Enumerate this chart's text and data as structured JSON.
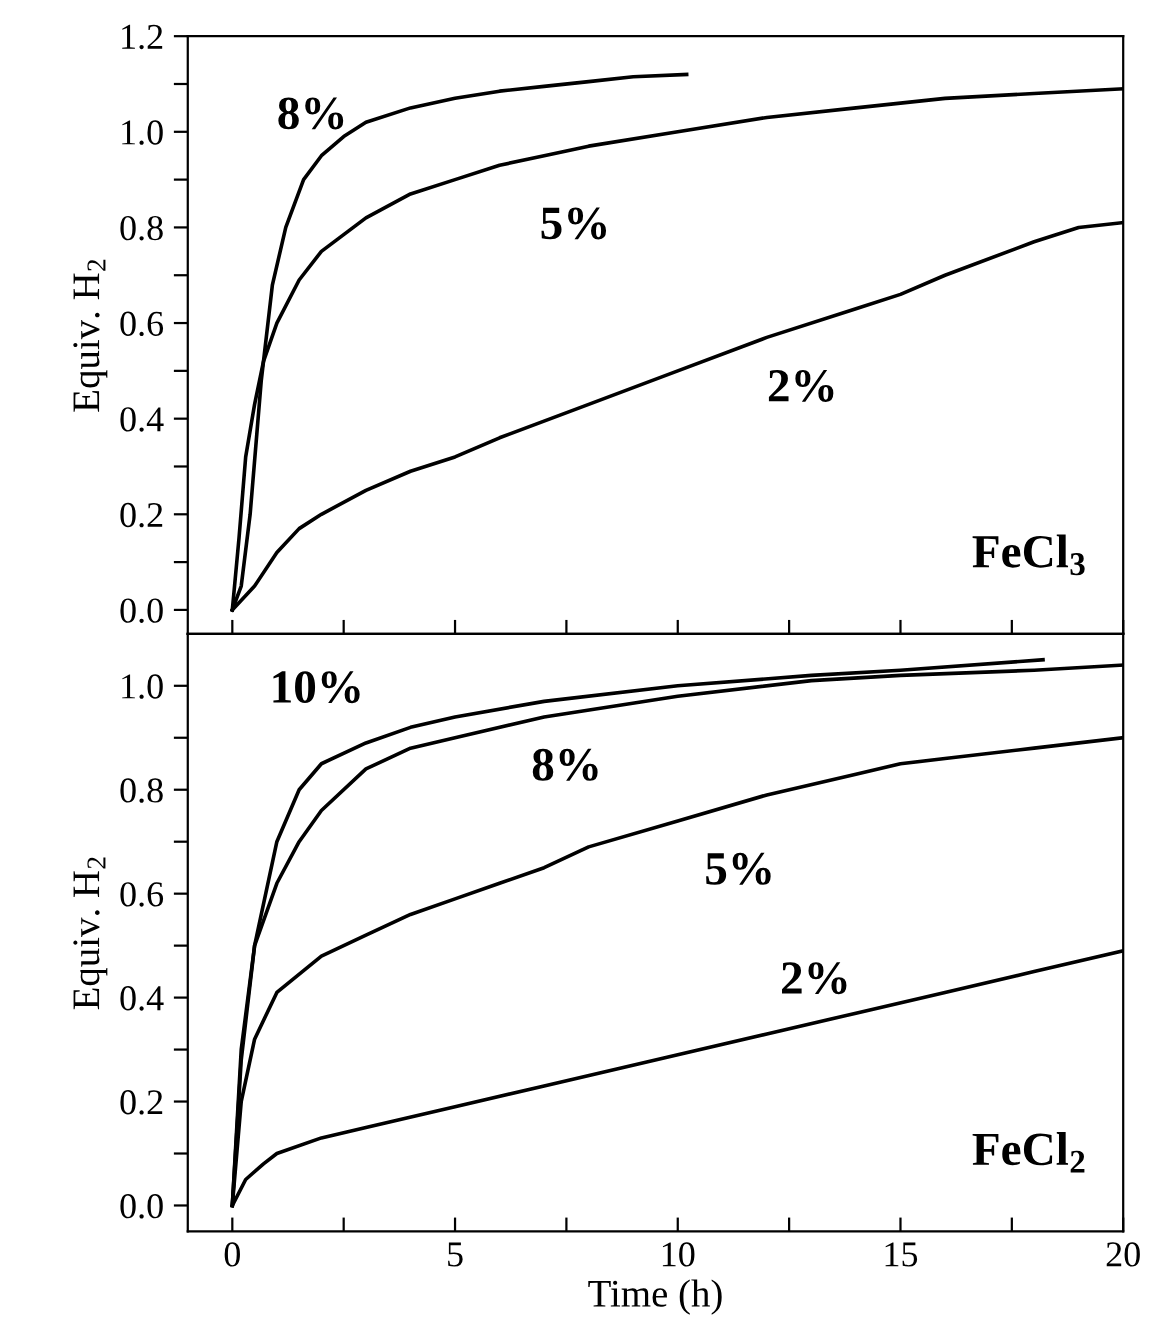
{
  "chart_data": [
    {
      "type": "line",
      "ylabel": "Equiv. H$_{2}$",
      "xlim": [
        -1,
        20
      ],
      "ylim": [
        -0.05,
        1.2
      ],
      "tick_labels": "y",
      "grid": false,
      "legend": false,
      "marker": "none",
      "line_style": "solid",
      "xticks": [
        {
          "value": 0,
          "label": null
        },
        {
          "value": 2.5,
          "label": null
        },
        {
          "value": 5,
          "label": null
        },
        {
          "value": 7.5,
          "label": null
        },
        {
          "value": 10,
          "label": null
        },
        {
          "value": 12.5,
          "label": null
        },
        {
          "value": 15,
          "label": null
        },
        {
          "value": 17.5,
          "label": null
        },
        {
          "value": 20,
          "label": null
        }
      ],
      "yticks": [
        {
          "value": 0,
          "label": "0.0"
        },
        {
          "value": 0.1,
          "label": null
        },
        {
          "value": 0.2,
          "label": "0.2"
        },
        {
          "value": 0.3,
          "label": null
        },
        {
          "value": 0.4,
          "label": "0.4"
        },
        {
          "value": 0.5,
          "label": null
        },
        {
          "value": 0.6,
          "label": "0.6"
        },
        {
          "value": 0.7,
          "label": null
        },
        {
          "value": 0.8,
          "label": "0.8"
        },
        {
          "value": 0.9,
          "label": null
        },
        {
          "value": 1.0,
          "label": "1.0"
        },
        {
          "value": 1.1,
          "label": null
        },
        {
          "value": 1.2,
          "label": "1.2"
        }
      ],
      "series": [
        {
          "name": "8%",
          "color": "#000000",
          "x": [
            0,
            0.2,
            0.4,
            0.65,
            0.9,
            1.2,
            1.6,
            2,
            2.5,
            3,
            4,
            5,
            6,
            7,
            8,
            9,
            10.2
          ],
          "values": [
            0,
            0.05,
            0.2,
            0.48,
            0.68,
            0.8,
            0.9,
            0.95,
            0.99,
            1.02,
            1.05,
            1.07,
            1.085,
            1.095,
            1.105,
            1.115,
            1.12
          ]
        },
        {
          "name": "5%",
          "color": "#000000",
          "x": [
            0,
            0.15,
            0.3,
            0.5,
            0.7,
            1,
            1.5,
            2,
            3,
            4,
            5,
            6,
            7,
            8,
            10,
            12,
            14,
            16,
            18,
            20
          ],
          "values": [
            0,
            0.15,
            0.32,
            0.43,
            0.52,
            0.6,
            0.69,
            0.75,
            0.82,
            0.87,
            0.9,
            0.93,
            0.95,
            0.97,
            1.0,
            1.03,
            1.05,
            1.07,
            1.08,
            1.09
          ]
        },
        {
          "name": "2%",
          "color": "#000000",
          "x": [
            0,
            0.5,
            1,
            1.5,
            2,
            3,
            4,
            5,
            6,
            8,
            10,
            12,
            14,
            15,
            16,
            18,
            19,
            20
          ],
          "values": [
            0,
            0.05,
            0.12,
            0.17,
            0.2,
            0.25,
            0.29,
            0.32,
            0.36,
            0.43,
            0.5,
            0.57,
            0.63,
            0.66,
            0.7,
            0.77,
            0.8,
            0.81
          ]
        }
      ],
      "annotations": [
        "FeCl$_{3}$"
      ]
    },
    {
      "type": "line",
      "xlabel": "Time (h)",
      "ylabel": "Equiv. H$_{2}$",
      "xlim": [
        -1,
        20
      ],
      "ylim": [
        -0.05,
        1.1
      ],
      "grid": false,
      "legend": false,
      "marker": "none",
      "line_style": "solid",
      "xticks": [
        0,
        {
          "value": 2.5,
          "label": null
        },
        5,
        {
          "value": 7.5,
          "label": null
        },
        10,
        {
          "value": 12.5,
          "label": null
        },
        15,
        {
          "value": 17.5,
          "label": null
        },
        20
      ],
      "yticks": [
        {
          "value": 0,
          "label": "0.0"
        },
        {
          "value": 0.1,
          "label": null
        },
        {
          "value": 0.2,
          "label": "0.2"
        },
        {
          "value": 0.3,
          "label": null
        },
        {
          "value": 0.4,
          "label": "0.4"
        },
        {
          "value": 0.5,
          "label": null
        },
        {
          "value": 0.6,
          "label": "0.6"
        },
        {
          "value": 0.7,
          "label": null
        },
        {
          "value": 0.8,
          "label": "0.8"
        },
        {
          "value": 0.9,
          "label": null
        },
        {
          "value": 1.0,
          "label": "1.0"
        }
      ],
      "series": [
        {
          "name": "10%",
          "color": "#000000",
          "x": [
            0,
            0.2,
            0.5,
            1,
            1.5,
            2,
            3,
            4,
            5,
            7,
            10,
            13,
            15,
            18.2
          ],
          "values": [
            0,
            0.3,
            0.5,
            0.7,
            0.8,
            0.85,
            0.89,
            0.92,
            0.94,
            0.97,
            1.0,
            1.02,
            1.03,
            1.05
          ]
        },
        {
          "name": "8%",
          "color": "#000000",
          "x": [
            0,
            0.2,
            0.5,
            1,
            1.5,
            2,
            3,
            4,
            5,
            7,
            10,
            13,
            15,
            18,
            20
          ],
          "values": [
            0,
            0.28,
            0.5,
            0.62,
            0.7,
            0.76,
            0.84,
            0.88,
            0.9,
            0.94,
            0.98,
            1.01,
            1.02,
            1.03,
            1.04
          ]
        },
        {
          "name": "5%",
          "color": "#000000",
          "x": [
            0,
            0.2,
            0.5,
            1,
            2,
            3,
            4,
            5,
            6,
            7,
            8,
            10,
            12,
            14,
            15,
            16,
            18,
            20
          ],
          "values": [
            0,
            0.2,
            0.32,
            0.41,
            0.48,
            0.52,
            0.56,
            0.59,
            0.62,
            0.65,
            0.69,
            0.74,
            0.79,
            0.83,
            0.85,
            0.86,
            0.88,
            0.9
          ]
        },
        {
          "name": "2%",
          "color": "#000000",
          "x": [
            0,
            0.3,
            0.7,
            1,
            2,
            3,
            5,
            7,
            10,
            12,
            14,
            16,
            18,
            20
          ],
          "values": [
            0,
            0.05,
            0.08,
            0.1,
            0.13,
            0.15,
            0.19,
            0.23,
            0.29,
            0.33,
            0.37,
            0.41,
            0.45,
            0.49
          ]
        }
      ],
      "annotations": [
        "FeCl$_{2}$"
      ]
    }
  ]
}
